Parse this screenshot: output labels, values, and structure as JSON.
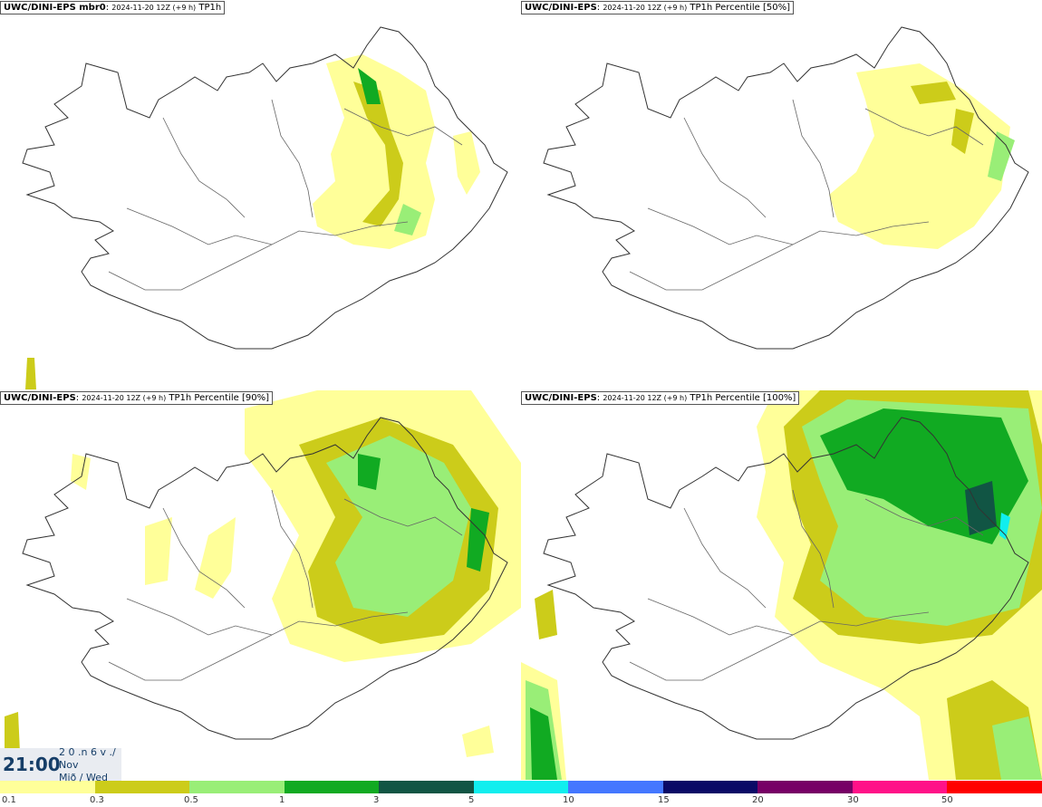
{
  "panels": [
    {
      "model": "UWC/DINI-EPS mbr0",
      "run": "2024-11-20 12Z (+9 h)",
      "field": "TP1h"
    },
    {
      "model": "UWC/DINI-EPS",
      "run": "2024-11-20 12Z (+9 h)",
      "field": "TP1h Percentile [50%]"
    },
    {
      "model": "UWC/DINI-EPS",
      "run": "2024-11-20 12Z (+9 h)",
      "field": "TP1h Percentile [90%]"
    },
    {
      "model": "UWC/DINI-EPS",
      "run": "2024-11-20 12Z (+9 h)",
      "field": "TP1h Percentile [100%]"
    }
  ],
  "clock": {
    "time": "21:00",
    "line1": "2 0 .n 6 v ./",
    "line2": "Nov",
    "line3": "Mið / Wed"
  },
  "legend": {
    "labels": [
      "0.1",
      "0.3",
      "0.5",
      "1",
      "3",
      "5",
      "10",
      "15",
      "20",
      "30",
      "50"
    ],
    "colors": [
      "#ffff99",
      "#cccc1a",
      "#99ee77",
      "#11aa22",
      "#115544",
      "#11eeee",
      "#4477ff",
      "#0a0a66",
      "#770066",
      "#ff1188",
      "#ff0000"
    ]
  }
}
